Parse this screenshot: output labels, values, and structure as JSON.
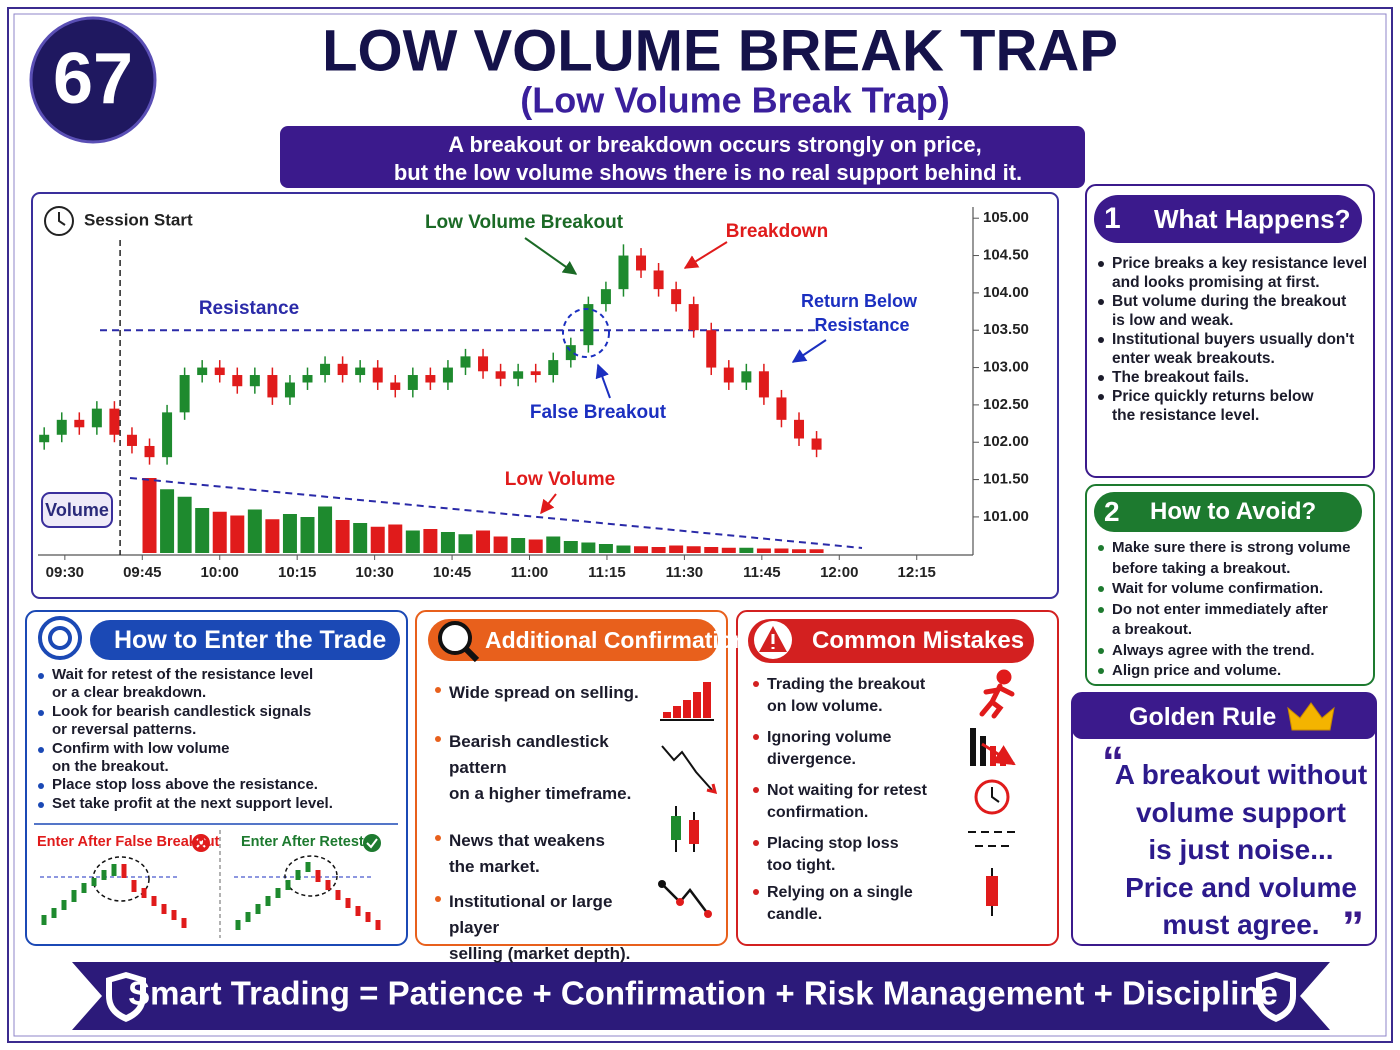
{
  "header": {
    "number": "67",
    "title": "LOW VOLUME BREAK TRAP",
    "subtitle": "(Low Volume Break Trap)",
    "description": [
      "A breakout or breakdown occurs strongly on price,",
      "but the low volume shows there is no real support behind it."
    ]
  },
  "chart_data": {
    "type": "candlestick",
    "x": [
      -4,
      -0.6,
      2.8,
      6.2,
      9.6,
      13,
      16.4,
      19.8,
      23.2,
      26.6,
      30,
      33.4,
      36.8,
      40.2,
      43.6,
      47,
      50.4,
      53.8,
      57.2,
      60.6,
      64,
      67.4,
      70.8,
      74.2,
      77.6,
      81,
      84.4,
      87.8,
      91.2,
      94.6,
      98,
      101.4,
      104.8,
      108.2,
      111.6,
      115,
      118.4,
      121.8,
      125.2,
      128.6,
      132,
      135.4,
      138.8,
      142.2,
      145.6
    ],
    "open": [
      102.0,
      102.1,
      102.3,
      102.2,
      102.45,
      102.1,
      101.95,
      101.8,
      102.4,
      102.9,
      103.0,
      102.9,
      102.75,
      102.9,
      102.6,
      102.8,
      102.9,
      103.05,
      102.9,
      103.0,
      102.8,
      102.7,
      102.9,
      102.8,
      103.0,
      103.15,
      102.95,
      102.85,
      102.95,
      102.9,
      103.1,
      103.3,
      103.85,
      104.05,
      104.5,
      104.3,
      104.05,
      103.85,
      103.5,
      103.0,
      102.8,
      102.95,
      102.6,
      102.3,
      102.05
    ],
    "high": [
      102.2,
      102.4,
      102.4,
      102.55,
      102.55,
      102.2,
      102.05,
      102.5,
      103.0,
      103.1,
      103.1,
      103.0,
      103.0,
      103.0,
      102.9,
      103.0,
      103.15,
      103.15,
      103.1,
      103.1,
      102.9,
      103.0,
      103.0,
      103.1,
      103.25,
      103.25,
      103.05,
      103.05,
      103.05,
      103.2,
      103.4,
      103.95,
      104.15,
      104.65,
      104.6,
      104.4,
      104.15,
      103.95,
      103.6,
      103.1,
      103.05,
      103.05,
      102.7,
      102.4,
      102.15
    ],
    "low": [
      101.9,
      102.0,
      102.1,
      102.1,
      102.0,
      101.85,
      101.7,
      101.7,
      102.3,
      102.8,
      102.8,
      102.65,
      102.65,
      102.5,
      102.5,
      102.7,
      102.8,
      102.8,
      102.8,
      102.7,
      102.6,
      102.6,
      102.7,
      102.7,
      102.9,
      102.85,
      102.75,
      102.75,
      102.8,
      102.8,
      103.0,
      103.2,
      103.75,
      103.95,
      104.2,
      103.95,
      103.75,
      103.4,
      102.9,
      102.7,
      102.7,
      102.5,
      102.2,
      101.95,
      101.8
    ],
    "close": [
      102.1,
      102.3,
      102.2,
      102.45,
      102.1,
      101.95,
      101.8,
      102.4,
      102.9,
      103.0,
      102.9,
      102.75,
      102.9,
      102.6,
      102.8,
      102.9,
      103.05,
      102.9,
      103.0,
      102.8,
      102.7,
      102.9,
      102.8,
      103.0,
      103.15,
      102.95,
      102.85,
      102.95,
      102.9,
      103.1,
      103.3,
      103.85,
      104.05,
      104.5,
      104.3,
      104.05,
      103.85,
      103.5,
      103.0,
      102.8,
      102.95,
      102.6,
      102.3,
      102.05,
      101.9
    ],
    "volume": [
      null,
      null,
      null,
      null,
      null,
      null,
      100,
      85,
      75,
      60,
      55,
      50,
      58,
      45,
      52,
      48,
      62,
      44,
      40,
      35,
      38,
      30,
      32,
      28,
      25,
      30,
      22,
      20,
      18,
      22,
      16,
      14,
      12,
      10,
      9,
      8,
      10,
      9,
      8,
      7,
      7,
      6,
      6,
      5,
      5
    ],
    "up_color": "#1e8a2e",
    "down_color": "#e01b1b",
    "xlim": [
      -5.2,
      175.9
    ],
    "ylim": [
      100.49,
      105.15
    ],
    "xticks": [
      {
        "value": 0,
        "label": "09:30"
      },
      {
        "value": 15,
        "label": "09:45"
      },
      {
        "value": 30,
        "label": "10:00"
      },
      {
        "value": 45,
        "label": "10:15"
      },
      {
        "value": 60,
        "label": "10:30"
      },
      {
        "value": 75,
        "label": "10:45"
      },
      {
        "value": 90,
        "label": "11:00"
      },
      {
        "value": 105,
        "label": "11:15"
      },
      {
        "value": 120,
        "label": "11:30"
      },
      {
        "value": 135,
        "label": "11:45"
      },
      {
        "value": 150,
        "label": "12:00"
      },
      {
        "value": 165,
        "label": "12:15"
      }
    ],
    "yticks": [
      {
        "value": 101,
        "label": "101.00"
      },
      {
        "value": 101.5,
        "label": "101.50"
      },
      {
        "value": 102,
        "label": "102.00"
      },
      {
        "value": 102.5,
        "label": "102.50"
      },
      {
        "value": 103,
        "label": "103.00"
      },
      {
        "value": 103.5,
        "label": "103.50"
      },
      {
        "value": 104,
        "label": "104.00"
      },
      {
        "value": 104.5,
        "label": "104.50"
      },
      {
        "value": 105,
        "label": "105.00"
      }
    ],
    "resistance": 103.5,
    "session_start": {
      "label": "Session Start",
      "x": 10.7
    },
    "annotations": {
      "low_volume_breakout": "Low Volume Breakout",
      "breakdown": "Breakdown",
      "resistance": "Resistance",
      "return_below": [
        "Return Below",
        "Resistance"
      ],
      "false_breakout": "False Breakout",
      "low_volume": "Low Volume",
      "volume": "Volume"
    }
  },
  "panels": {
    "what_happens": {
      "number": "1",
      "title": "What Happens?",
      "bullets": [
        [
          "Price breaks a key resistance level",
          "and looks promising at first."
        ],
        [
          "But volume during the breakout",
          "is low and weak."
        ],
        [
          "Institutional buyers usually don't",
          "enter weak breakouts."
        ],
        [
          "The breakout fails."
        ],
        [
          "Price quickly returns below",
          "the resistance level."
        ]
      ]
    },
    "how_to_avoid": {
      "number": "2",
      "title": "How to Avoid?",
      "bullets": [
        [
          "Make sure there is strong volume",
          "before taking a breakout."
        ],
        [
          "Wait for volume confirmation."
        ],
        [
          "Do not enter immediately after",
          "a breakout."
        ],
        [
          "Always agree with the trend."
        ],
        [
          "Align price and volume."
        ]
      ]
    },
    "golden_rule": {
      "title": "Golden Rule",
      "quote": [
        "A breakout without",
        "volume support",
        "is just noise...",
        "Price and volume",
        "must agree."
      ]
    },
    "enter_trade": {
      "title": "How to Enter the Trade",
      "bullets": [
        [
          "Wait for retest of the resistance level",
          "or a clear breakdown."
        ],
        [
          "Look for bearish candlestick signals",
          "or reversal patterns."
        ],
        [
          "Confirm with low volume",
          "on the breakout."
        ],
        [
          "Place stop loss above the resistance."
        ],
        [
          "Set take profit at the next support level."
        ]
      ],
      "examples": [
        "Enter After False Breakout",
        "Enter After Retest"
      ]
    },
    "confirmation": {
      "title": "Additional Confirmation",
      "bullets": [
        [
          "Wide spread on selling."
        ],
        [
          "Bearish candlestick pattern",
          "on a higher timeframe."
        ],
        [
          "News that weakens",
          "the market."
        ],
        [
          "Institutional or large player",
          "selling (market depth)."
        ]
      ]
    },
    "mistakes": {
      "title": "Common Mistakes",
      "bullets": [
        [
          "Trading the breakout",
          "on low volume."
        ],
        [
          "Ignoring volume",
          "divergence."
        ],
        [
          "Not waiting for retest",
          "confirmation."
        ],
        [
          "Placing stop loss",
          "too tight."
        ],
        [
          "Relying on a single",
          "candle."
        ]
      ]
    }
  },
  "footer": "Smart Trading = Patience + Confirmation + Risk Management + Discipline"
}
